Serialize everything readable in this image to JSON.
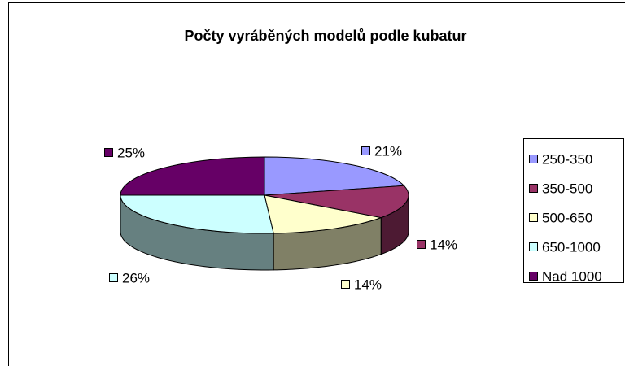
{
  "chart_data": {
    "type": "pie3d",
    "title": "Počty vyráběných modelů podle kubatur",
    "categories": [
      "250-350",
      "350-500",
      "500-650",
      "650-1000",
      "Nad 1000"
    ],
    "values": [
      21,
      14,
      14,
      26,
      25
    ],
    "value_labels": [
      "21%",
      "14%",
      "14%",
      "26%",
      "25%"
    ],
    "colors": [
      "#9999ff",
      "#993366",
      "#ffffcc",
      "#ccffff",
      "#660066"
    ],
    "legend": "right"
  }
}
